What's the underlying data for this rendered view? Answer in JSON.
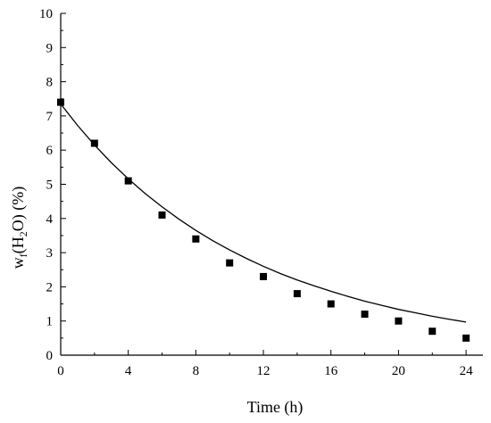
{
  "chart_data": {
    "type": "scatter",
    "xlabel": "Time (h)",
    "ylabel": {
      "prefix": "w",
      "prefix_sub": "f",
      "open": "(H",
      "h_sub": "2",
      "close": "O) (%)"
    },
    "xlim": [
      0,
      25
    ],
    "ylim": [
      0,
      10
    ],
    "x_ticks": [
      0,
      4,
      8,
      12,
      16,
      20,
      24
    ],
    "y_ticks": [
      0,
      1,
      2,
      3,
      4,
      5,
      6,
      7,
      8,
      9,
      10
    ],
    "grid": false,
    "series": [
      {
        "marker": "square",
        "color": "#000000",
        "x": [
          0,
          2,
          4,
          6,
          8,
          10,
          12,
          14,
          16,
          18,
          20,
          22,
          24
        ],
        "y": [
          7.4,
          6.2,
          5.1,
          4.1,
          3.4,
          2.7,
          2.3,
          1.8,
          1.5,
          1.2,
          1.0,
          0.7,
          0.5
        ]
      }
    ],
    "fit_curve": {
      "type": "exponential",
      "color": "#000000",
      "x": [
        0,
        1,
        2,
        3,
        4,
        5,
        6,
        7,
        8,
        9,
        10,
        11,
        12,
        13,
        14,
        15,
        16,
        17,
        18,
        19,
        20,
        21,
        22,
        23,
        24
      ],
      "y": [
        7.35,
        6.72,
        6.15,
        5.63,
        5.16,
        4.73,
        4.34,
        3.98,
        3.65,
        3.35,
        3.08,
        2.83,
        2.6,
        2.39,
        2.2,
        2.03,
        1.87,
        1.72,
        1.58,
        1.46,
        1.34,
        1.24,
        1.14,
        1.05,
        0.97
      ]
    }
  }
}
